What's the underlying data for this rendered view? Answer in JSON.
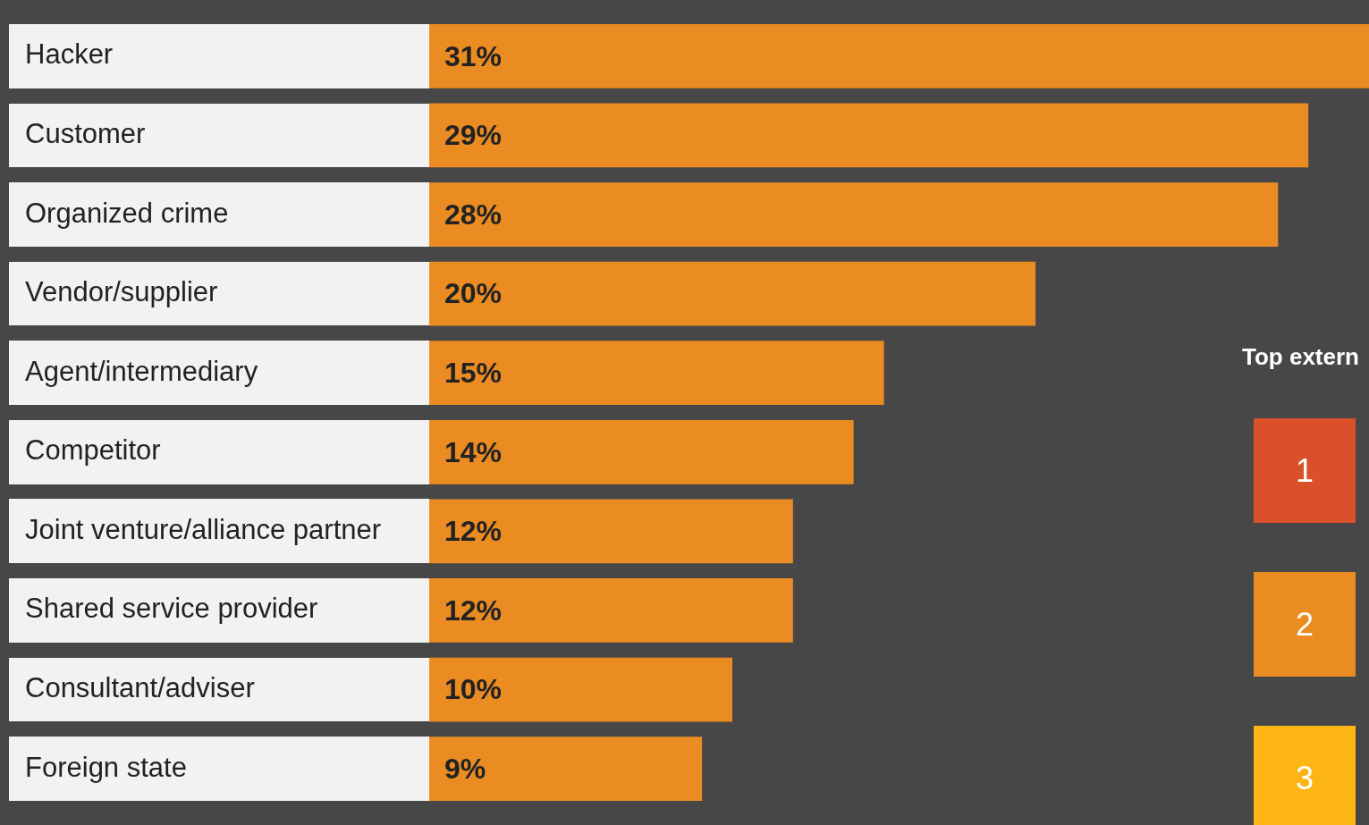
{
  "chart_data": {
    "type": "bar",
    "orientation": "horizontal",
    "categories": [
      "Hacker",
      "Customer",
      "Organized crime",
      "Vendor/supplier",
      "Agent/intermediary",
      "Competitor",
      "Joint venture/alliance partner",
      "Shared service provider",
      "Consultant/adviser",
      "Foreign state"
    ],
    "values": [
      31,
      29,
      28,
      20,
      15,
      14,
      12,
      12,
      10,
      9
    ],
    "value_labels": [
      "31%",
      "29%",
      "28%",
      "20%",
      "15%",
      "14%",
      "12%",
      "12%",
      "10%",
      "9%"
    ],
    "color": "#eb8c23",
    "xlim": [
      0,
      31
    ],
    "legend": false,
    "annotations": [
      "Top extern",
      "1",
      "2",
      "3"
    ]
  }
}
